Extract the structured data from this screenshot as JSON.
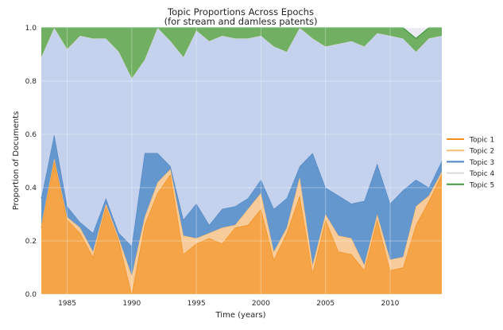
{
  "chart_data": {
    "type": "area",
    "stacked": true,
    "title": "Topic Proportions Across Epochs",
    "subtitle": "(for stream and damless patents)",
    "xlabel": "Time (years)",
    "ylabel": "Proportion of Documents",
    "xlim": [
      1983,
      2014
    ],
    "ylim": [
      0,
      1.0
    ],
    "x_ticks": [
      1985,
      1990,
      1995,
      2000,
      2005,
      2010
    ],
    "y_ticks": [
      "0.0",
      "0.2",
      "0.4",
      "0.6",
      "0.8",
      "1.0"
    ],
    "grid": true,
    "legend_position": "right",
    "x": [
      1983,
      1984,
      1985,
      1986,
      1987,
      1988,
      1989,
      1990,
      1991,
      1992,
      1993,
      1994,
      1995,
      1996,
      1997,
      1998,
      1999,
      2000,
      2001,
      2002,
      2003,
      2004,
      2005,
      2006,
      2007,
      2008,
      2009,
      2010,
      2011,
      2012,
      2013,
      2014
    ],
    "series": [
      {
        "name": "Topic 1",
        "color": "#f5a03d",
        "line_color": "#f28e1c",
        "values": [
          0.25,
          0.5,
          0.28,
          0.23,
          0.14,
          0.33,
          0.2,
          0.0,
          0.26,
          0.38,
          0.45,
          0.15,
          0.19,
          0.21,
          0.19,
          0.25,
          0.26,
          0.32,
          0.13,
          0.23,
          0.37,
          0.08,
          0.28,
          0.16,
          0.15,
          0.09,
          0.28,
          0.09,
          0.1,
          0.26,
          0.35,
          0.45
        ]
      },
      {
        "name": "Topic 2",
        "color": "#f8c995",
        "line_color": "#fbbf73",
        "values": [
          0.01,
          0.01,
          0.01,
          0.02,
          0.02,
          0.01,
          0.01,
          0.07,
          0.03,
          0.04,
          0.02,
          0.07,
          0.02,
          0.02,
          0.06,
          0.01,
          0.06,
          0.06,
          0.03,
          0.02,
          0.07,
          0.03,
          0.02,
          0.06,
          0.06,
          0.02,
          0.02,
          0.04,
          0.04,
          0.07,
          0.02,
          0.01
        ]
      },
      {
        "name": "Topic 3",
        "color": "#5e92cc",
        "line_color": "#4a84c4",
        "values": [
          0.1,
          0.09,
          0.04,
          0.02,
          0.07,
          0.02,
          0.02,
          0.11,
          0.24,
          0.11,
          0.01,
          0.06,
          0.13,
          0.03,
          0.07,
          0.07,
          0.04,
          0.05,
          0.16,
          0.11,
          0.04,
          0.42,
          0.1,
          0.15,
          0.13,
          0.24,
          0.19,
          0.21,
          0.25,
          0.1,
          0.03,
          0.04
        ]
      },
      {
        "name": "Topic 4",
        "color": "#c2d1ec",
        "line_color": "#d9d9d9",
        "values": [
          0.53,
          0.4,
          0.59,
          0.7,
          0.73,
          0.6,
          0.68,
          0.63,
          0.35,
          0.47,
          0.47,
          0.61,
          0.65,
          0.69,
          0.65,
          0.63,
          0.6,
          0.54,
          0.61,
          0.55,
          0.52,
          0.43,
          0.53,
          0.57,
          0.61,
          0.58,
          0.49,
          0.63,
          0.57,
          0.48,
          0.56,
          0.47
        ]
      },
      {
        "name": "Topic 5",
        "color": "#6aac5a",
        "line_color": "#3f9a3d",
        "values": [
          0.11,
          0.0,
          0.08,
          0.03,
          0.04,
          0.04,
          0.09,
          0.19,
          0.12,
          0.0,
          0.05,
          0.11,
          0.01,
          0.05,
          0.03,
          0.04,
          0.04,
          0.03,
          0.07,
          0.09,
          0.0,
          0.04,
          0.07,
          0.06,
          0.05,
          0.07,
          0.02,
          0.03,
          0.04,
          0.05,
          0.04,
          0.03
        ]
      }
    ]
  }
}
